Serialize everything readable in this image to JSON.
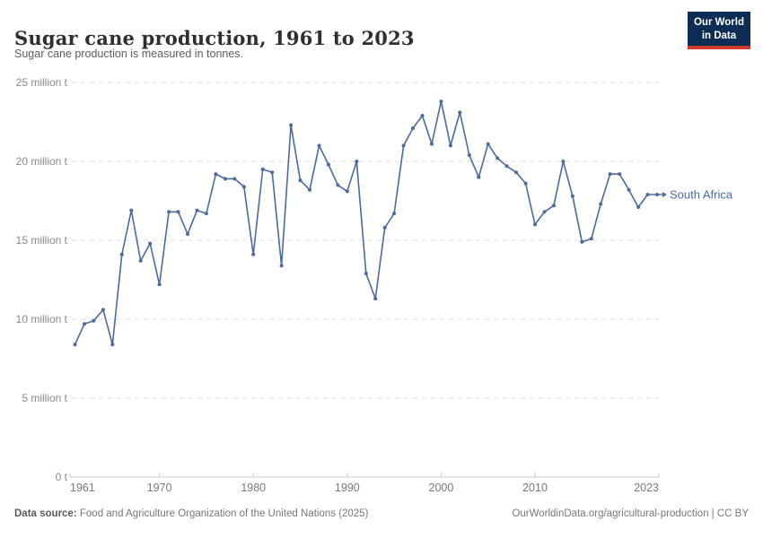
{
  "header": {
    "title": "Sugar cane production, 1961 to 2023",
    "subtitle": "Sugar cane production is measured in tonnes."
  },
  "logo": {
    "line1": "Our World",
    "line2": "in Data",
    "bg_color": "#0d2c56",
    "accent_color": "#cf3b2c"
  },
  "chart_data": {
    "type": "line",
    "title": "Sugar cane production, 1961 to 2023",
    "ylabel": "",
    "xlabel": "",
    "value_unit": "million tonnes",
    "ylim": [
      0,
      25
    ],
    "grid": "dashed-horizontal",
    "legend_position": "end-of-line-label",
    "series": [
      {
        "name": "South Africa",
        "color": "#4c6a9c",
        "years": [
          1961,
          1962,
          1963,
          1964,
          1965,
          1966,
          1967,
          1968,
          1969,
          1970,
          1971,
          1972,
          1973,
          1974,
          1975,
          1976,
          1977,
          1978,
          1979,
          1980,
          1981,
          1982,
          1983,
          1984,
          1985,
          1986,
          1987,
          1988,
          1989,
          1990,
          1991,
          1992,
          1993,
          1994,
          1995,
          1996,
          1997,
          1998,
          1999,
          2000,
          2001,
          2002,
          2003,
          2004,
          2005,
          2006,
          2007,
          2008,
          2009,
          2010,
          2011,
          2012,
          2013,
          2014,
          2015,
          2016,
          2017,
          2018,
          2019,
          2020,
          2021,
          2022,
          2023
        ],
        "values": [
          8.4,
          9.7,
          9.9,
          10.6,
          8.4,
          14.1,
          16.9,
          13.7,
          14.8,
          12.2,
          16.8,
          16.8,
          15.4,
          16.9,
          16.7,
          19.2,
          18.9,
          18.9,
          18.4,
          14.1,
          19.5,
          19.3,
          13.4,
          22.3,
          18.8,
          18.2,
          21.0,
          19.8,
          18.5,
          18.1,
          20.0,
          12.9,
          11.3,
          15.8,
          16.7,
          21.0,
          22.1,
          22.9,
          21.1,
          23.8,
          21.0,
          23.1,
          20.4,
          19.0,
          21.1,
          20.2,
          19.7,
          19.3,
          18.6,
          16.0,
          16.8,
          17.2,
          20.0,
          17.8,
          14.9,
          15.1,
          17.3,
          19.2,
          19.2,
          18.2,
          17.1,
          17.9,
          17.9
        ]
      }
    ],
    "yticks": [
      {
        "value": 0,
        "label": "0 t"
      },
      {
        "value": 5,
        "label": "5 million t"
      },
      {
        "value": 10,
        "label": "10 million t"
      },
      {
        "value": 15,
        "label": "15 million t"
      },
      {
        "value": 20,
        "label": "20 million t"
      },
      {
        "value": 25,
        "label": "25 million t"
      }
    ],
    "xticks": [
      1961,
      1970,
      1980,
      1990,
      2000,
      2010,
      2023
    ]
  },
  "footer": {
    "source_label": "Data source:",
    "source_text": "Food and Agriculture Organization of the United Nations (2025)",
    "right_text": "OurWorldinData.org/agricultural-production | CC BY"
  }
}
